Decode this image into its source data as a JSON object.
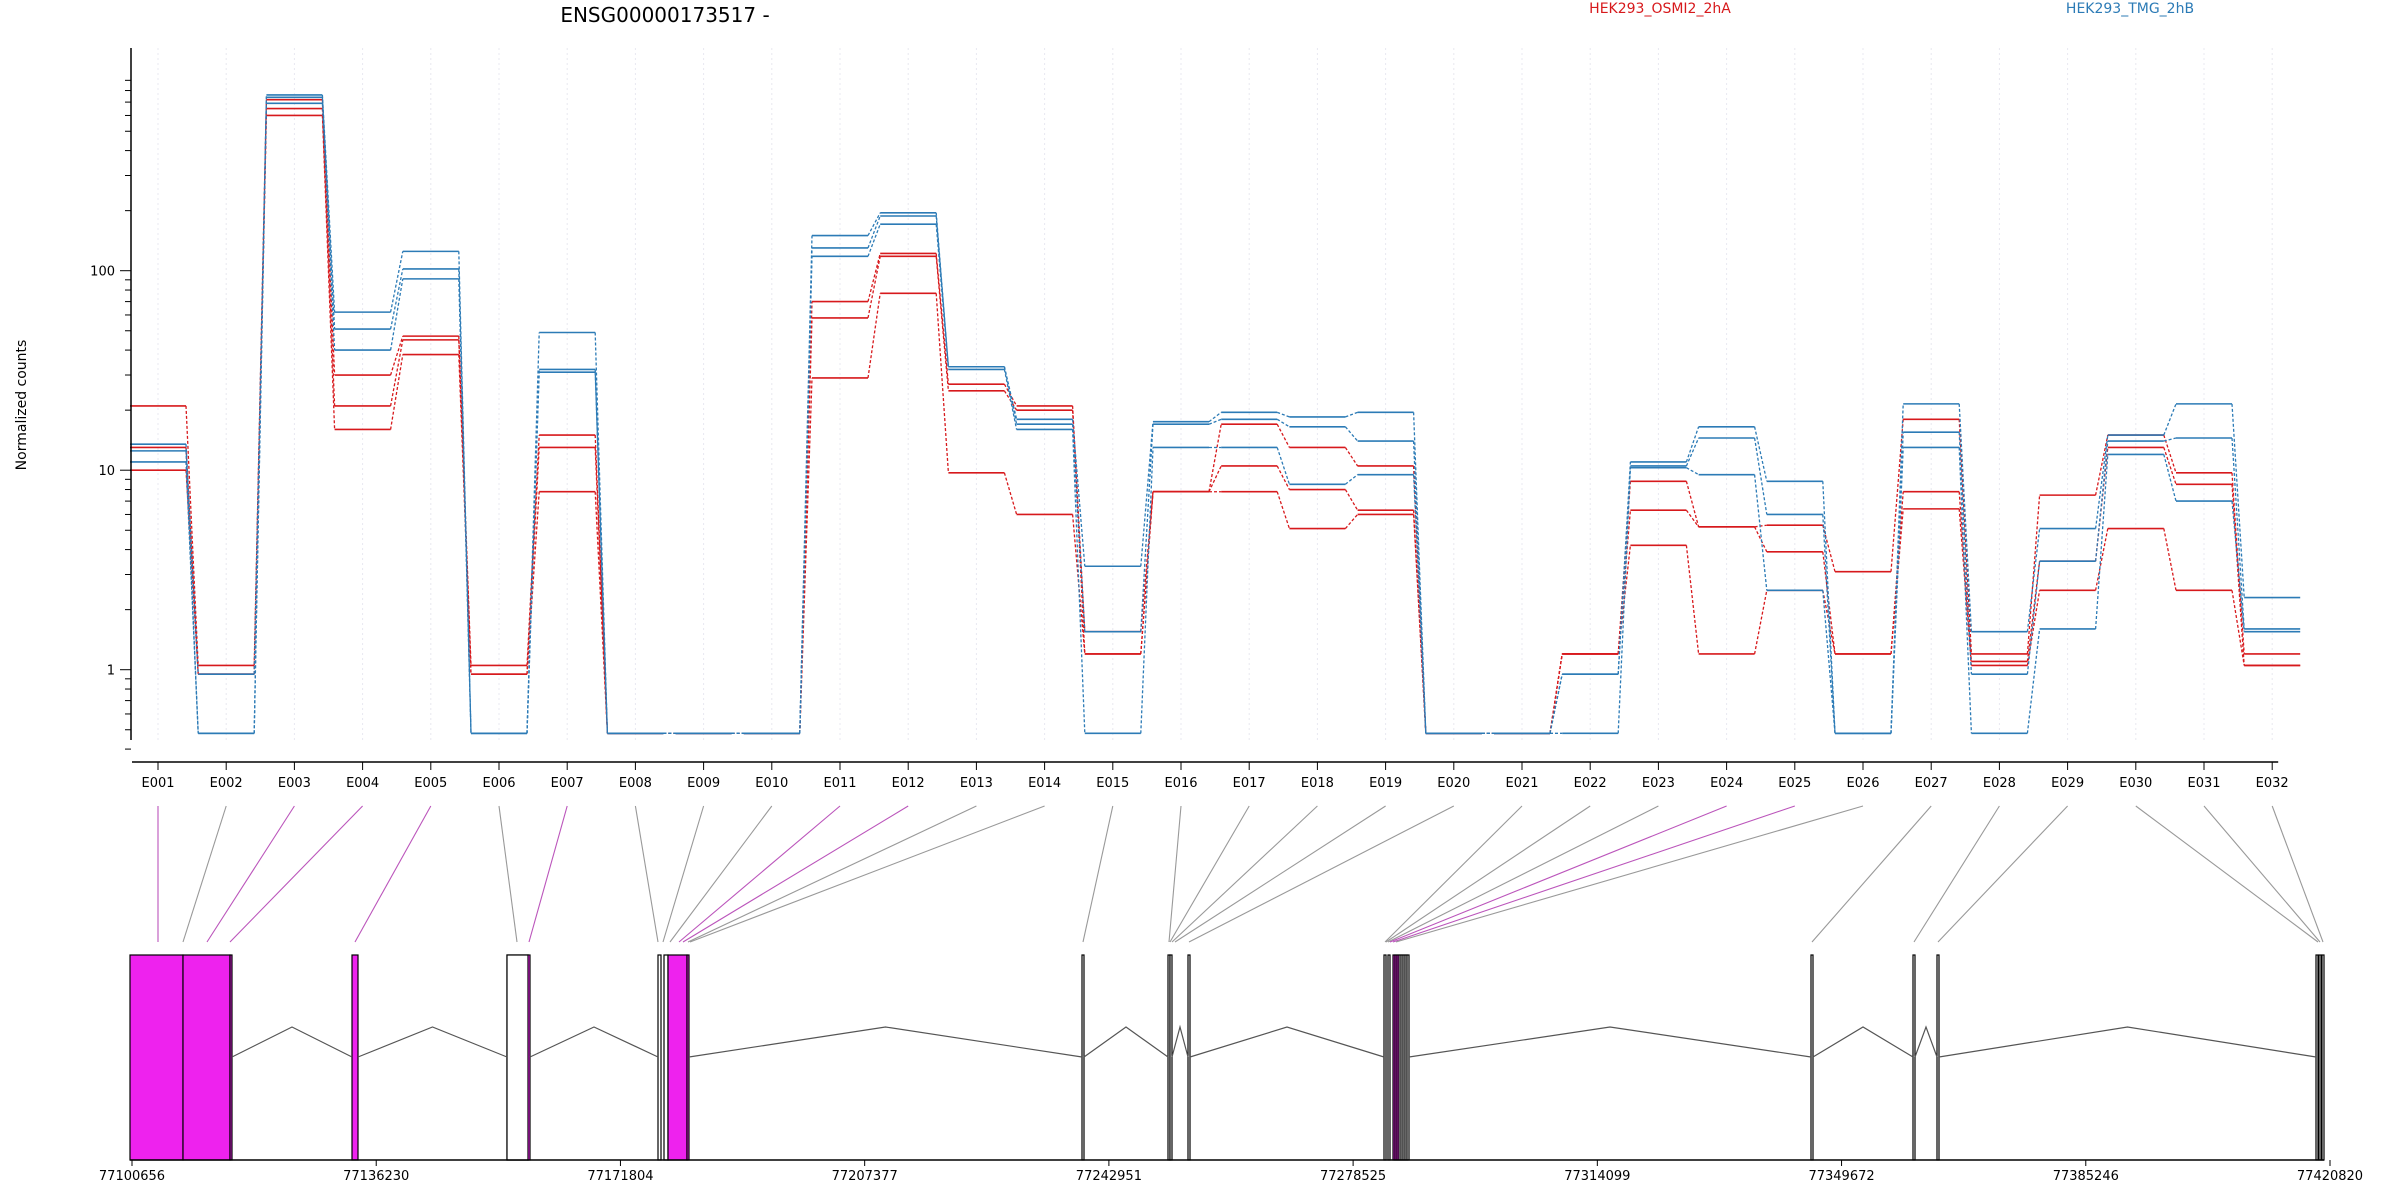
{
  "chart_data": {
    "type": "line",
    "title": "ENSG00000173517 -",
    "ylabel": "Normalized counts",
    "yscale": "log",
    "ylim": [
      0.4,
      1000
    ],
    "yticks": [
      1,
      10,
      100
    ],
    "yticks_display": [
      "1",
      "10",
      "100"
    ],
    "categories": [
      "E001",
      "E002",
      "E003",
      "E004",
      "E005",
      "E006",
      "E007",
      "E008",
      "E009",
      "E010",
      "E011",
      "E012",
      "E013",
      "E014",
      "E015",
      "E016",
      "E017",
      "E018",
      "E019",
      "E020",
      "E021",
      "E022",
      "E023",
      "E024",
      "E025",
      "E026",
      "E027",
      "E028",
      "E029",
      "E030",
      "E031",
      "E032"
    ],
    "legend": [
      {
        "name": "HEK293_OSMI2_2hA",
        "color": "#d7191c"
      },
      {
        "name": "HEK293_TMG_2hB",
        "color": "#2c7bb6"
      }
    ],
    "series": [
      {
        "group": "HEK293_OSMI2_2hA",
        "color": "#d7191c",
        "values": [
          21,
          1.05,
          720,
          30,
          47,
          1.05,
          15,
          0.48,
          0.48,
          0.48,
          70,
          122,
          27,
          21,
          1.55,
          7.8,
          17,
          13,
          10.5,
          0.48,
          0.48,
          1.2,
          8.8,
          5.2,
          5.3,
          3.1,
          18,
          1.2,
          7.5,
          15,
          9.7,
          1.2
        ]
      },
      {
        "group": "HEK293_OSMI2_2hA",
        "color": "#d7191c",
        "values": [
          13,
          0.95,
          650,
          21,
          45,
          0.95,
          13,
          0.48,
          0.48,
          0.48,
          58,
          118,
          25,
          20,
          1.2,
          7.8,
          10.5,
          8,
          6.3,
          0.48,
          0.48,
          1.2,
          6.3,
          5.2,
          3.9,
          1.2,
          7.8,
          1.1,
          3.5,
          13,
          8.5,
          1.05
        ]
      },
      {
        "group": "HEK293_OSMI2_2hA",
        "color": "#d7191c",
        "values": [
          10,
          0.95,
          600,
          16,
          38,
          0.95,
          7.8,
          0.48,
          0.48,
          0.48,
          29,
          77,
          9.7,
          6,
          1.2,
          7.8,
          7.8,
          5.1,
          6,
          0.48,
          0.48,
          1.2,
          4.2,
          1.2,
          2.5,
          1.2,
          6.4,
          1.05,
          2.5,
          5.1,
          2.5,
          1.05
        ]
      },
      {
        "group": "HEK293_TMG_2hB",
        "color": "#2c7bb6",
        "values": [
          13.5,
          0.95,
          760,
          62,
          125,
          0.48,
          49,
          0.48,
          0.48,
          0.48,
          150,
          195,
          33,
          18,
          3.3,
          17.5,
          19.5,
          18.5,
          19.5,
          0.48,
          0.48,
          0.95,
          11,
          16.5,
          8.8,
          0.48,
          21.5,
          1.55,
          5.1,
          15,
          21.5,
          2.3
        ]
      },
      {
        "group": "HEK293_TMG_2hB",
        "color": "#2c7bb6",
        "values": [
          12.5,
          0.48,
          740,
          51,
          102,
          0.48,
          32,
          0.48,
          0.48,
          0.48,
          130,
          188,
          33,
          17,
          1.55,
          17,
          18,
          16.5,
          14,
          0.48,
          0.48,
          0.95,
          10.5,
          14.5,
          6,
          0.48,
          15.5,
          0.95,
          3.5,
          14,
          14.5,
          1.6
        ]
      },
      {
        "group": "HEK293_TMG_2hB",
        "color": "#2c7bb6",
        "values": [
          11,
          0.48,
          690,
          40,
          91,
          0.48,
          31,
          0.48,
          0.48,
          0.48,
          118,
          171,
          32,
          16,
          0.48,
          13,
          13,
          8.5,
          9.5,
          0.48,
          0.48,
          0.48,
          10.3,
          9.5,
          2.5,
          0.48,
          13,
          0.48,
          1.6,
          12,
          7,
          1.55
        ]
      }
    ],
    "exon_track": {
      "coordinate_ticks": [
        "77100656",
        "77136230",
        "77171804",
        "77207377",
        "77242951",
        "77278525",
        "77314099",
        "77349672",
        "77385246",
        "77420820"
      ],
      "exon_fill": "#ee22ee"
    }
  }
}
